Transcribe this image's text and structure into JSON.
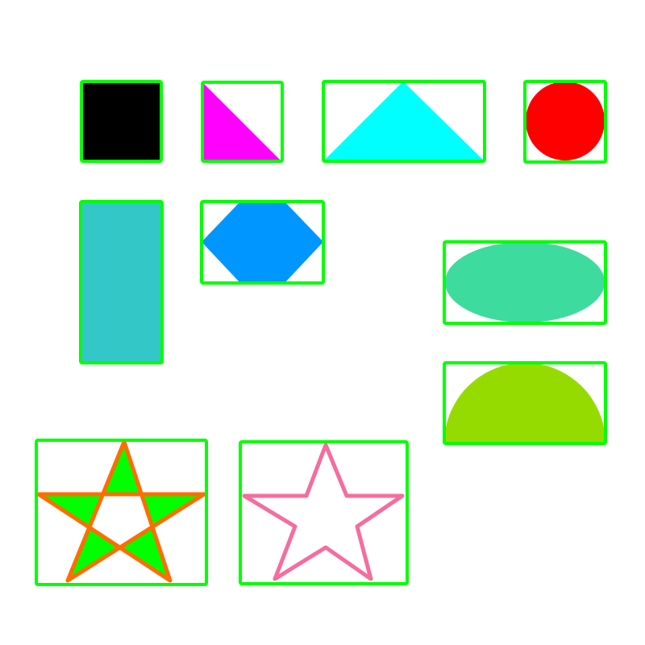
{
  "colors": {
    "background": "#ffffff",
    "box_outline": "#00ff00"
  },
  "shapes": [
    {
      "id": "square",
      "label": "",
      "kind": "square",
      "fill": "#000000"
    },
    {
      "id": "right-triangle",
      "label": "",
      "kind": "right-triangle",
      "fill": "#ff00ff"
    },
    {
      "id": "triangle",
      "label": "",
      "kind": "isosceles-triangle",
      "fill": "#00ffff"
    },
    {
      "id": "circle",
      "label": "",
      "kind": "circle",
      "fill": "#ff0000"
    },
    {
      "id": "rectangle",
      "label": "",
      "kind": "rectangle",
      "fill": "#33c7c7"
    },
    {
      "id": "hexagon",
      "label": "",
      "kind": "hexagon",
      "fill": "#0096ff"
    },
    {
      "id": "ellipse",
      "label": "",
      "kind": "ellipse",
      "fill": "#3ddb9e"
    },
    {
      "id": "semicircle",
      "label": "",
      "kind": "semicircle",
      "fill": "#96db00"
    },
    {
      "id": "star-filled",
      "label": "",
      "kind": "star-self-intersecting",
      "fill": "#00ff00",
      "stroke": "#ff6d00"
    },
    {
      "id": "star-outline",
      "label": "",
      "kind": "star-outline",
      "fill": "none",
      "stroke": "#f56d9e"
    }
  ]
}
